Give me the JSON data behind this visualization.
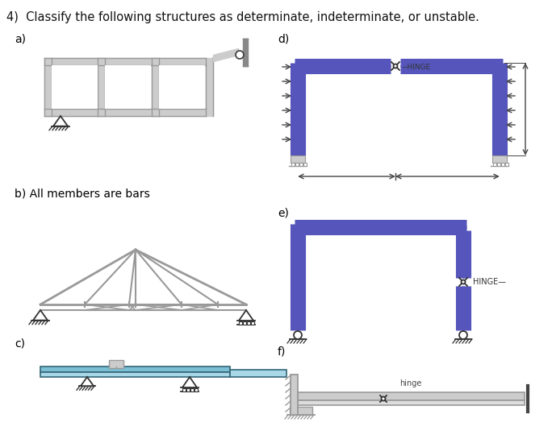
{
  "title": "4)  Classify the following structures as determinate, indeterminate, or unstable.",
  "title_fontsize": 10.5,
  "bg_color": "#ffffff",
  "labels": {
    "a": "a)",
    "b": "b) All members are bars",
    "c": "c)",
    "d": "d)",
    "e": "e)",
    "f": "f)"
  },
  "blue": "#5555bb",
  "blue2": "#7777cc",
  "gray_d": "#999999",
  "gray_l": "#cccccc",
  "gray_frame": "#aaaaaa",
  "cyan1": "#7bbfd4",
  "cyan2": "#a8d8e8"
}
